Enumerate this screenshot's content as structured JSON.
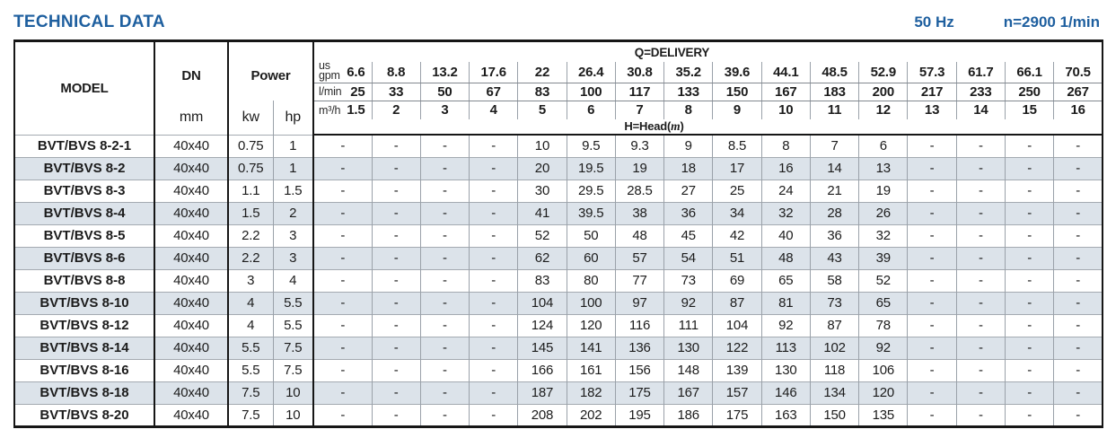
{
  "header_bar": {
    "title": "TECHNICAL DATA",
    "frequency": "50 Hz",
    "speed": "n=2900 1/min"
  },
  "table": {
    "columns": {
      "model_label": "MODEL",
      "dn_label": "DN",
      "dn_unit": "mm",
      "power_label": "Power",
      "power_unit_kw": "kw",
      "power_unit_hp": "hp"
    },
    "delivery": {
      "label": "Q=DELIVERY",
      "head_label_prefix": "H=Head(",
      "head_label_unit": "m",
      "head_label_suffix": ")",
      "unit_rows": [
        {
          "unit_line1": "us",
          "unit_line2": "gpm",
          "first_value": "6.6",
          "values": [
            "8.8",
            "13.2",
            "17.6",
            "22",
            "26.4",
            "30.8",
            "35.2",
            "39.6",
            "44.1",
            "48.5",
            "52.9",
            "57.3",
            "61.7",
            "66.1",
            "70.5"
          ]
        },
        {
          "unit": "l/min",
          "first_value": "25",
          "values": [
            "33",
            "50",
            "67",
            "83",
            "100",
            "117",
            "133",
            "150",
            "167",
            "183",
            "200",
            "217",
            "233",
            "250",
            "267"
          ]
        },
        {
          "unit": "m³/h",
          "first_value": "1.5",
          "values": [
            "2",
            "3",
            "4",
            "5",
            "6",
            "7",
            "8",
            "9",
            "10",
            "11",
            "12",
            "13",
            "14",
            "15",
            "16"
          ]
        }
      ]
    },
    "rows": [
      {
        "model": "BVT/BVS 8-2-1",
        "dn": "40x40",
        "kw": "0.75",
        "hp": "1",
        "heads": [
          "-",
          "-",
          "-",
          "-",
          "10",
          "9.5",
          "9.3",
          "9",
          "8.5",
          "8",
          "7",
          "6",
          "-",
          "-",
          "-",
          "-"
        ]
      },
      {
        "model": "BVT/BVS 8-2",
        "dn": "40x40",
        "kw": "0.75",
        "hp": "1",
        "heads": [
          "-",
          "-",
          "-",
          "-",
          "20",
          "19.5",
          "19",
          "18",
          "17",
          "16",
          "14",
          "13",
          "-",
          "-",
          "-",
          "-"
        ]
      },
      {
        "model": "BVT/BVS 8-3",
        "dn": "40x40",
        "kw": "1.1",
        "hp": "1.5",
        "heads": [
          "-",
          "-",
          "-",
          "-",
          "30",
          "29.5",
          "28.5",
          "27",
          "25",
          "24",
          "21",
          "19",
          "-",
          "-",
          "-",
          "-"
        ]
      },
      {
        "model": "BVT/BVS 8-4",
        "dn": "40x40",
        "kw": "1.5",
        "hp": "2",
        "heads": [
          "-",
          "-",
          "-",
          "-",
          "41",
          "39.5",
          "38",
          "36",
          "34",
          "32",
          "28",
          "26",
          "-",
          "-",
          "-",
          "-"
        ]
      },
      {
        "model": "BVT/BVS 8-5",
        "dn": "40x40",
        "kw": "2.2",
        "hp": "3",
        "heads": [
          "-",
          "-",
          "-",
          "-",
          "52",
          "50",
          "48",
          "45",
          "42",
          "40",
          "36",
          "32",
          "-",
          "-",
          "-",
          "-"
        ]
      },
      {
        "model": "BVT/BVS 8-6",
        "dn": "40x40",
        "kw": "2.2",
        "hp": "3",
        "heads": [
          "-",
          "-",
          "-",
          "-",
          "62",
          "60",
          "57",
          "54",
          "51",
          "48",
          "43",
          "39",
          "-",
          "-",
          "-",
          "-"
        ]
      },
      {
        "model": "BVT/BVS 8-8",
        "dn": "40x40",
        "kw": "3",
        "hp": "4",
        "heads": [
          "-",
          "-",
          "-",
          "-",
          "83",
          "80",
          "77",
          "73",
          "69",
          "65",
          "58",
          "52",
          "-",
          "-",
          "-",
          "-"
        ]
      },
      {
        "model": "BVT/BVS 8-10",
        "dn": "40x40",
        "kw": "4",
        "hp": "5.5",
        "heads": [
          "-",
          "-",
          "-",
          "-",
          "104",
          "100",
          "97",
          "92",
          "87",
          "81",
          "73",
          "65",
          "-",
          "-",
          "-",
          "-"
        ]
      },
      {
        "model": "BVT/BVS 8-12",
        "dn": "40x40",
        "kw": "4",
        "hp": "5.5",
        "heads": [
          "-",
          "-",
          "-",
          "-",
          "124",
          "120",
          "116",
          "111",
          "104",
          "92",
          "87",
          "78",
          "-",
          "-",
          "-",
          "-"
        ]
      },
      {
        "model": "BVT/BVS 8-14",
        "dn": "40x40",
        "kw": "5.5",
        "hp": "7.5",
        "heads": [
          "-",
          "-",
          "-",
          "-",
          "145",
          "141",
          "136",
          "130",
          "122",
          "113",
          "102",
          "92",
          "-",
          "-",
          "-",
          "-"
        ]
      },
      {
        "model": "BVT/BVS 8-16",
        "dn": "40x40",
        "kw": "5.5",
        "hp": "7.5",
        "heads": [
          "-",
          "-",
          "-",
          "-",
          "166",
          "161",
          "156",
          "148",
          "139",
          "130",
          "118",
          "106",
          "-",
          "-",
          "-",
          "-"
        ]
      },
      {
        "model": "BVT/BVS 8-18",
        "dn": "40x40",
        "kw": "7.5",
        "hp": "10",
        "heads": [
          "-",
          "-",
          "-",
          "-",
          "187",
          "182",
          "175",
          "167",
          "157",
          "146",
          "134",
          "120",
          "-",
          "-",
          "-",
          "-"
        ]
      },
      {
        "model": "BVT/BVS 8-20",
        "dn": "40x40",
        "kw": "7.5",
        "hp": "10",
        "heads": [
          "-",
          "-",
          "-",
          "-",
          "208",
          "202",
          "195",
          "186",
          "175",
          "163",
          "150",
          "135",
          "-",
          "-",
          "-",
          "-"
        ]
      }
    ]
  },
  "colors": {
    "accent_blue": "#1e5f9f",
    "row_stripe": "#dce3ea",
    "border_dark": "#161616",
    "border_light": "#9aa1a9",
    "text": "#1c1c1c"
  }
}
